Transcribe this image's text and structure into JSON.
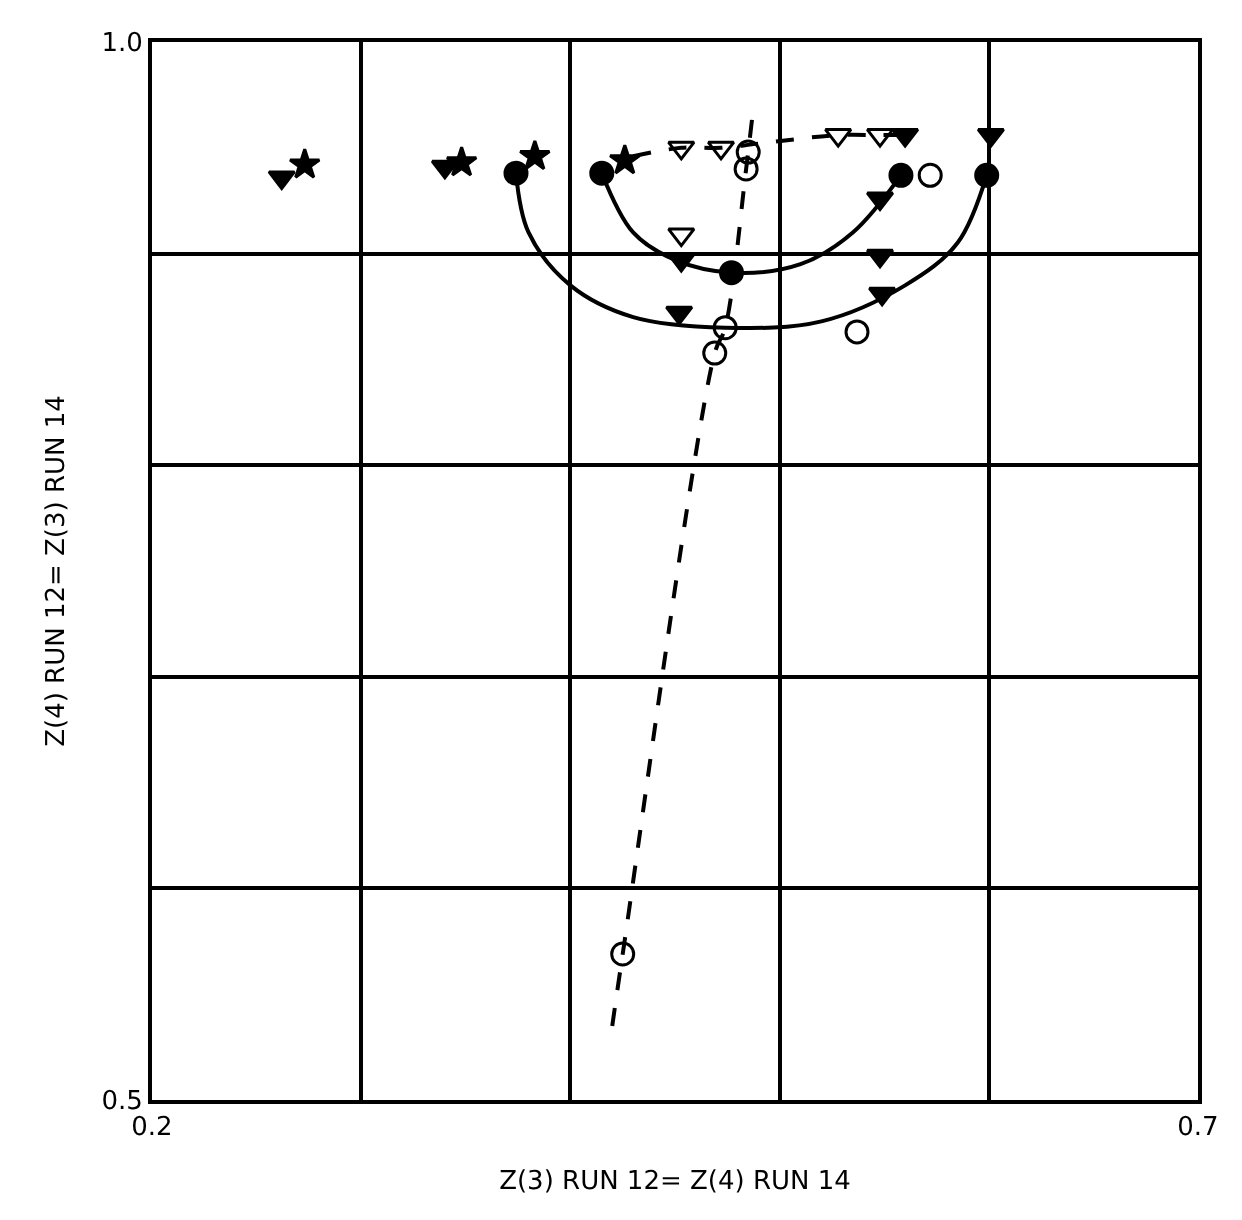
{
  "chart_data": {
    "type": "scatter",
    "xlabel": "Z(3) RUN 12= Z(4) RUN 14",
    "ylabel": "Z(4) RUN 12= Z(3) RUN 14",
    "xlim": [
      0.2,
      0.7
    ],
    "ylim": [
      0.5,
      1.0
    ],
    "xticks": [
      0.2,
      {
        "value": 0.3,
        "label": null
      },
      {
        "value": 0.4,
        "label": null
      },
      {
        "value": 0.5,
        "label": null
      },
      {
        "value": 0.6,
        "label": null
      },
      0.7
    ],
    "yticks": [
      0.5,
      {
        "value": 0.6,
        "label": null
      },
      {
        "value": 0.7,
        "label": null
      },
      {
        "value": 0.8,
        "label": null
      },
      {
        "value": 0.9,
        "label": null
      },
      {
        "value": 1.0,
        "label": "1.0"
      }
    ],
    "grid": true,
    "series": [
      {
        "type": "line",
        "color": "#000000",
        "marker": "none",
        "line_style": "solid",
        "x": [
          0.374,
          0.38,
          0.4,
          0.43,
          0.474,
          0.52,
          0.56,
          0.585,
          0.599
        ],
        "values": [
          0.938,
          0.91,
          0.885,
          0.87,
          0.865,
          0.868,
          0.885,
          0.905,
          0.937
        ]
      },
      {
        "type": "line",
        "color": "#000000",
        "marker": "none",
        "line_style": "solid",
        "x": [
          0.415,
          0.43,
          0.45,
          0.477,
          0.51,
          0.535,
          0.558
        ],
        "values": [
          0.938,
          0.91,
          0.897,
          0.891,
          0.895,
          0.91,
          0.937
        ]
      },
      {
        "type": "line",
        "color": "#000000",
        "marker": "none",
        "line_style": "dashed",
        "x": [
          0.43,
          0.453,
          0.472,
          0.49,
          0.528,
          0.548,
          0.565
        ],
        "values": [
          0.946,
          0.95,
          0.95,
          0.952,
          0.956,
          0.956,
          0.956
        ]
      },
      {
        "type": "line",
        "color": "#000000",
        "marker": "none",
        "line_style": "dashed",
        "x": [
          0.42,
          0.425,
          0.469,
          0.474,
          0.484,
          0.487
        ],
        "values": [
          0.535,
          0.569,
          0.853,
          0.865,
          0.94,
          0.965
        ]
      },
      {
        "color": "#000000",
        "marker": "triangle-down",
        "x": [
          0.262,
          0.34,
          0.548,
          0.453,
          0.548,
          0.452,
          0.549,
          0.56,
          0.601
        ],
        "values": [
          0.936,
          0.941,
          0.926,
          0.897,
          0.899,
          0.872,
          0.881,
          0.956,
          0.956
        ]
      },
      {
        "color": "#000000",
        "marker": "triangle-down-open",
        "x": [
          0.453,
          0.472,
          0.528,
          0.548,
          0.453
        ],
        "values": [
          0.95,
          0.95,
          0.956,
          0.956,
          0.909
        ]
      },
      {
        "color": "#000000",
        "marker": "star",
        "x": [
          0.273,
          0.348,
          0.383,
          0.426
        ],
        "values": [
          0.942,
          0.943,
          0.946,
          0.944
        ]
      },
      {
        "color": "#000000",
        "marker": "circle",
        "x": [
          0.374,
          0.415,
          0.558,
          0.599,
          0.477
        ],
        "values": [
          0.938,
          0.938,
          0.937,
          0.937,
          0.891
        ]
      },
      {
        "color": "#000000",
        "marker": "circle-open",
        "x": [
          0.485,
          0.484,
          0.572,
          0.474,
          0.469,
          0.537,
          0.425
        ],
        "values": [
          0.948,
          0.94,
          0.937,
          0.865,
          0.853,
          0.863,
          0.569
        ]
      }
    ]
  }
}
